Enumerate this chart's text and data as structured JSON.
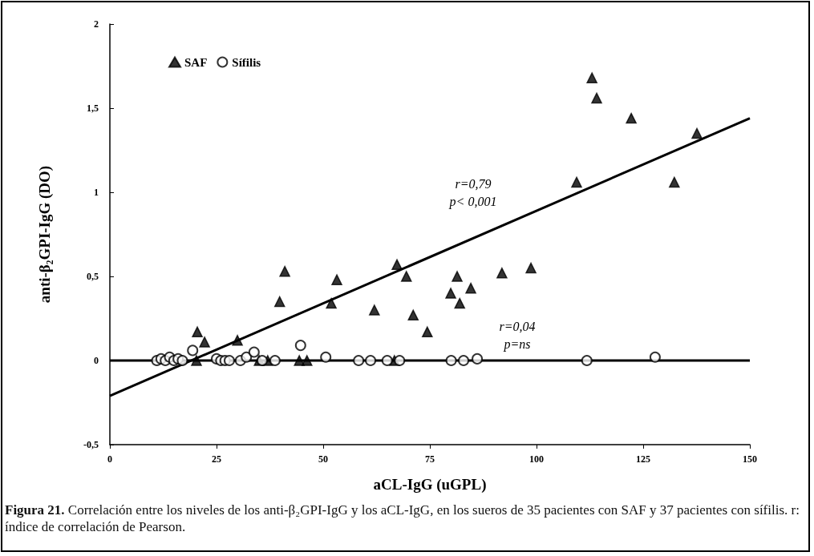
{
  "chart_data": {
    "type": "scatter",
    "xlabel": "aCL-IgG (uGPL)",
    "ylabel": "anti-β₂GPI-IgG (DO)",
    "xlim": [
      0,
      150
    ],
    "xticks": [
      0,
      25,
      50,
      75,
      100,
      125,
      150
    ],
    "ylim": [
      -0.5,
      2
    ],
    "yticks": [
      {
        "value": -0.5,
        "label": "-0,5"
      },
      0,
      {
        "value": 0.5,
        "label": "0,5"
      },
      1,
      {
        "value": 1.5,
        "label": "1,5"
      },
      2
    ],
    "grid": false,
    "legend": "top left",
    "series": [
      {
        "name": "SAF",
        "color": "#000000",
        "marker": "triangle",
        "x": [
          20.5,
          22.2,
          29.9,
          39.8,
          41,
          53.2,
          51.9,
          20.3,
          44.4,
          46.2,
          67.3,
          69.5,
          62,
          71.1,
          74.4,
          81.4,
          79.9,
          84.6,
          82,
          91.9,
          98.7,
          66.7,
          113,
          114.1,
          122.2,
          137.6,
          109.4,
          132.3,
          35,
          37
        ],
        "values": [
          0.17,
          0.11,
          0.12,
          0.35,
          0.53,
          0.48,
          0.34,
          0,
          0,
          0,
          0.57,
          0.5,
          0.3,
          0.27,
          0.17,
          0.5,
          0.4,
          0.43,
          0.34,
          0.52,
          0.55,
          0,
          1.68,
          1.56,
          1.44,
          1.35,
          1.06,
          1.06,
          0,
          0
        ]
      },
      {
        "name": "Sífilis",
        "color": "#000000",
        "marker": "circle",
        "x": [
          11,
          12,
          13,
          14,
          15,
          16,
          17,
          19.4,
          25,
          26,
          27,
          28,
          30.6,
          32,
          33.8,
          35.7,
          38.7,
          44.7,
          50.6,
          58.3,
          61.1,
          65,
          67.9,
          80,
          82.9,
          86.1,
          111.8,
          127.8
        ],
        "values": [
          0,
          0.01,
          0,
          0.02,
          0,
          0.01,
          0,
          0.06,
          0.01,
          0,
          0,
          0,
          0,
          0.02,
          0.05,
          0,
          0,
          0.09,
          0.02,
          0,
          0,
          0,
          0,
          0,
          0,
          0.01,
          0,
          0.02
        ]
      },
      {
        "type": "line",
        "color": "#000000",
        "marker": "none",
        "line_style": "solid",
        "x": [
          0,
          150
        ],
        "values": [
          -0.21,
          1.44
        ]
      },
      {
        "type": "line",
        "color": "#000000",
        "marker": "none",
        "line_style": "solid",
        "x": [
          0,
          150
        ],
        "values": [
          0,
          0
        ]
      }
    ],
    "annotations": [
      "r=0,79\np< 0,001",
      "r=0,04\np=ns",
      "Figura 21. Correlación entre los niveles de los anti-β₂GPI-IgG y los aCL-IgG, en los sueros de 35 pacientes con SAF y 37 pacientes con sífilis. r: índice de correlación de Pearson."
    ]
  }
}
